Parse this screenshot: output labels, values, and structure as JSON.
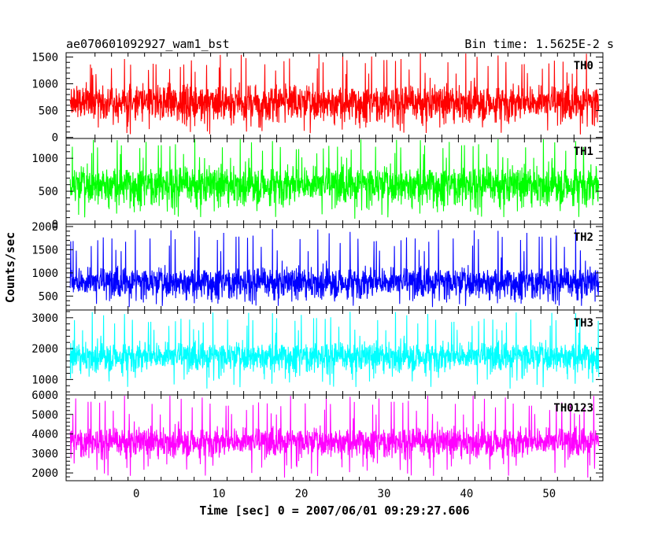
{
  "header": {
    "left": "ae070601092927_wam1_bst",
    "right": "Bin time: 1.5625E-2 s"
  },
  "chart_data": {
    "type": "line",
    "title": "ae070601092927_wam1_bst",
    "xlabel": "Time [sec] 0 = 2007/06/01 09:29:27.606",
    "ylabel": "Counts/sec",
    "bin_time": "1.5625E-2 s",
    "xlim": [
      -8.5,
      56.5
    ],
    "xticks": [
      0,
      10,
      20,
      30,
      40,
      50
    ],
    "x_data_range": [
      -8,
      56
    ],
    "panels": [
      {
        "name": "TH0",
        "color": "#ff0000",
        "ylim": [
          -20,
          1580
        ],
        "yticks": [
          0,
          500,
          1000,
          1500
        ],
        "mean": 650,
        "spread": 230,
        "min": 50,
        "max": 1580,
        "hi_count": 1300
      },
      {
        "name": "TH1",
        "color": "#00ff00",
        "ylim": [
          0,
          1300
        ],
        "yticks": [
          0,
          500,
          1000
        ],
        "mean": 600,
        "spread": 200,
        "min": 80,
        "max": 1300,
        "hi_count": 1100
      },
      {
        "name": "TH2",
        "color": "#0000ff",
        "ylim": [
          200,
          2050
        ],
        "yticks": [
          500,
          1000,
          1500,
          2000
        ],
        "mean": 800,
        "spread": 230,
        "min": 260,
        "max": 1950,
        "hi_count": 1550
      },
      {
        "name": "TH3",
        "color": "#00ffff",
        "ylim": [
          500,
          3250
        ],
        "yticks": [
          1000,
          2000,
          3000
        ],
        "mean": 1750,
        "spread": 330,
        "min": 700,
        "max": 3200,
        "hi_count": 2650
      },
      {
        "name": "TH0123",
        "color": "#ff00ff",
        "ylim": [
          1600,
          6000
        ],
        "yticks": [
          2000,
          3000,
          4000,
          5000,
          6000
        ],
        "mean": 3600,
        "spread": 520,
        "min": 1750,
        "max": 6000,
        "hi_count": 5200
      }
    ]
  }
}
